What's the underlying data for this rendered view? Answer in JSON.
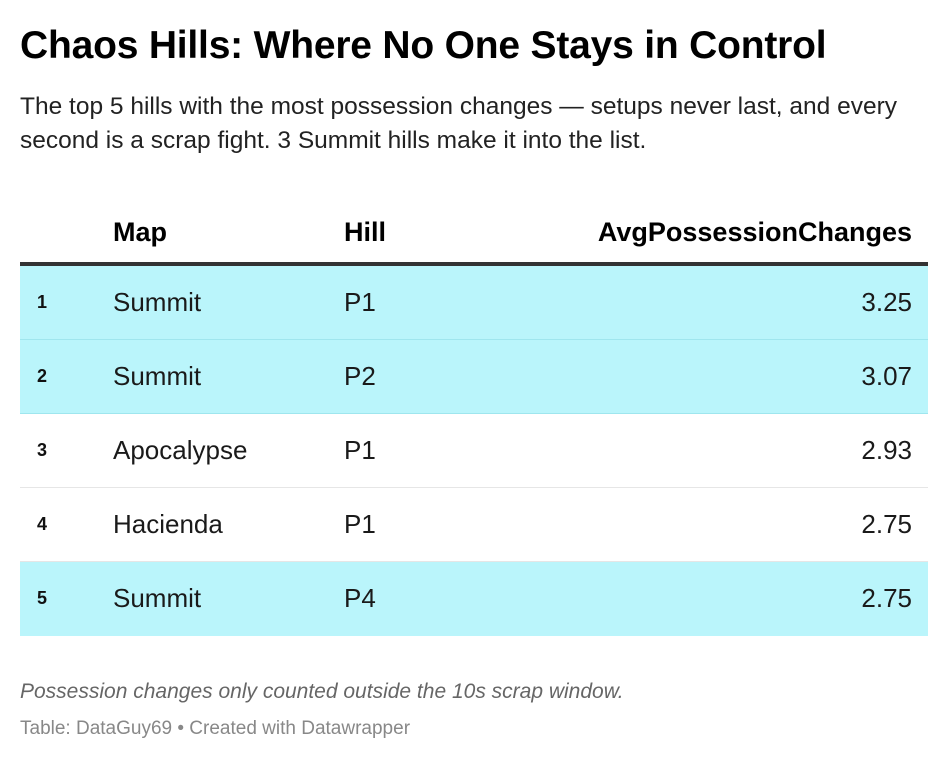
{
  "title": "Chaos Hills: Where No One Stays in Control",
  "subtitle": "The top 5 hills with the most possession changes — setups never last, and every second is a scrap fight. 3 Summit hills make it into the list.",
  "chart_data": {
    "type": "table",
    "columns": [
      "Map",
      "Hill",
      "AvgPossessionChanges"
    ],
    "rows": [
      {
        "rank": "1",
        "map": "Summit",
        "hill": "P1",
        "value": "3.25",
        "highlighted": true
      },
      {
        "rank": "2",
        "map": "Summit",
        "hill": "P2",
        "value": "3.07",
        "highlighted": true
      },
      {
        "rank": "3",
        "map": "Apocalypse",
        "hill": "P1",
        "value": "2.93",
        "highlighted": false
      },
      {
        "rank": "4",
        "map": "Hacienda",
        "hill": "P1",
        "value": "2.75",
        "highlighted": false
      },
      {
        "rank": "5",
        "map": "Summit",
        "hill": "P4",
        "value": "2.75",
        "highlighted": true
      }
    ],
    "highlight_color": "#baf5fb"
  },
  "notes": "Possession changes only counted outside the 10s scrap window.",
  "source": "Table: DataGuy69 • Created with Datawrapper"
}
